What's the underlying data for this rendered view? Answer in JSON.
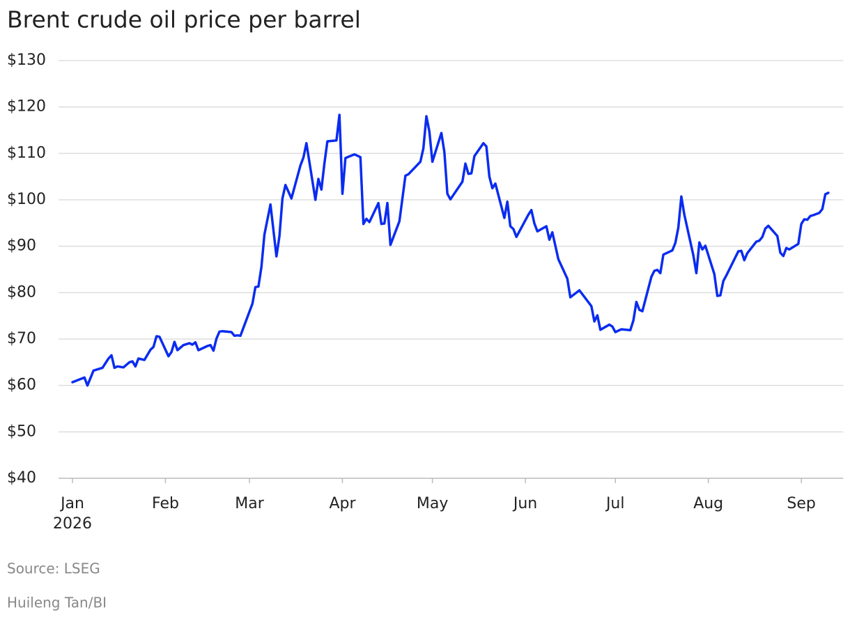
{
  "chart_data": {
    "type": "line",
    "title": "Brent crude oil price per barrel",
    "source": "Source: LSEG",
    "credit": "Huileng Tan/BI",
    "x_axis_year": "2026",
    "x": [
      0,
      4,
      5,
      7,
      10,
      12,
      13,
      14,
      15,
      17,
      19,
      20,
      21,
      22,
      24,
      26,
      27,
      28,
      29,
      32,
      33,
      34,
      35,
      37,
      39,
      40,
      41,
      42,
      45,
      46,
      47,
      48,
      49,
      50,
      53,
      54,
      55,
      56,
      60,
      61,
      62,
      63,
      64,
      66,
      68,
      69,
      70,
      71,
      73,
      76,
      77,
      78,
      81,
      82,
      83,
      84,
      85,
      88,
      89,
      90,
      91,
      94,
      96,
      97,
      98,
      99,
      102,
      103,
      104,
      105,
      106,
      109,
      111,
      112,
      116,
      117,
      118,
      119,
      120,
      123,
      124,
      125,
      126,
      130,
      131,
      132,
      133,
      134,
      137,
      138,
      139,
      140,
      141,
      144,
      145,
      146,
      147,
      148,
      152,
      153,
      154,
      155,
      158,
      159,
      160,
      162,
      165,
      166,
      169,
      173,
      174,
      175,
      176,
      179,
      180,
      181,
      183,
      186,
      187,
      188,
      189,
      190,
      193,
      194,
      195,
      196,
      197,
      200,
      201,
      202,
      203,
      204,
      207,
      208,
      209,
      210,
      211,
      214,
      215,
      216,
      217,
      218,
      222,
      223,
      224,
      225,
      228,
      229,
      230,
      231,
      232,
      235,
      236,
      237,
      238,
      239,
      242,
      243,
      244,
      245,
      246,
      247,
      249,
      250,
      251,
      252
    ],
    "series": [
      {
        "name": "Brent crude",
        "color": "#0a2cf0",
        "values": [
          60.7,
          61.7,
          60.0,
          63.2,
          63.8,
          65.8,
          66.5,
          63.8,
          64.1,
          63.9,
          65.0,
          65.2,
          64.1,
          65.8,
          65.5,
          67.7,
          68.3,
          70.6,
          70.5,
          66.3,
          67.2,
          69.4,
          67.6,
          68.7,
          69.1,
          68.8,
          69.3,
          67.6,
          68.5,
          68.7,
          67.5,
          70.1,
          71.6,
          71.7,
          71.5,
          70.7,
          70.8,
          70.7,
          77.6,
          81.2,
          81.3,
          85.5,
          92.5,
          99.0,
          87.8,
          92.2,
          100.3,
          103.2,
          100.3,
          107.4,
          109.1,
          112.2,
          100.0,
          104.5,
          102.2,
          107.8,
          112.6,
          112.8,
          118.3,
          101.3,
          109.0,
          109.8,
          109.2,
          94.8,
          95.9,
          95.2,
          99.3,
          94.8,
          94.9,
          99.3,
          90.3,
          95.4,
          105.2,
          105.5,
          108.2,
          111.1,
          118.0,
          114.7,
          108.2,
          114.4,
          110.3,
          101.3,
          100.1,
          103.9,
          107.8,
          105.6,
          105.7,
          109.4,
          112.2,
          111.5,
          105.0,
          102.5,
          103.5,
          96.1,
          99.6,
          94.3,
          93.7,
          92.0,
          96.8,
          97.8,
          94.9,
          93.2,
          94.3,
          91.4,
          93.0,
          87.2,
          83.0,
          79.0,
          80.5,
          77.1,
          73.8,
          75.1,
          72.0,
          73.1,
          72.7,
          71.5,
          72.1,
          71.9,
          74.0,
          78.0,
          76.3,
          76.0,
          83.4,
          84.7,
          84.9,
          84.2,
          88.2,
          89.1,
          90.7,
          94.0,
          100.7,
          96.8,
          88.0,
          84.2,
          90.8,
          89.3,
          90.1,
          84.0,
          79.3,
          79.4,
          82.5,
          83.7,
          88.9,
          89.0,
          87.0,
          88.5,
          91.0,
          91.2,
          92.0,
          93.8,
          94.4,
          92.2,
          88.6,
          87.9,
          89.6,
          89.3,
          90.5,
          94.8,
          95.8,
          95.7,
          96.5,
          96.7,
          97.2,
          98.0,
          101.2,
          101.5
        ]
      }
    ],
    "xlim": [
      -5,
      257
    ],
    "xticks": [
      {
        "value": 0,
        "label": "Jan"
      },
      {
        "value": 31,
        "label": "Feb"
      },
      {
        "value": 59,
        "label": "Mar"
      },
      {
        "value": 90,
        "label": "Apr"
      },
      {
        "value": 120,
        "label": "May"
      },
      {
        "value": 151,
        "label": "Jun"
      },
      {
        "value": 181,
        "label": "Jul"
      },
      {
        "value": 212,
        "label": "Aug"
      },
      {
        "value": 243,
        "label": "Sep"
      }
    ],
    "ylim": [
      40,
      130
    ],
    "yticks": [
      {
        "value": 40,
        "label": "$40"
      },
      {
        "value": 50,
        "label": "$50"
      },
      {
        "value": 60,
        "label": "$60"
      },
      {
        "value": 70,
        "label": "$70"
      },
      {
        "value": 80,
        "label": "$80"
      },
      {
        "value": 90,
        "label": "$90"
      },
      {
        "value": 100,
        "label": "$100"
      },
      {
        "value": 110,
        "label": "$110"
      },
      {
        "value": 120,
        "label": "$120"
      },
      {
        "value": 130,
        "label": "$130"
      }
    ],
    "grid": true
  }
}
